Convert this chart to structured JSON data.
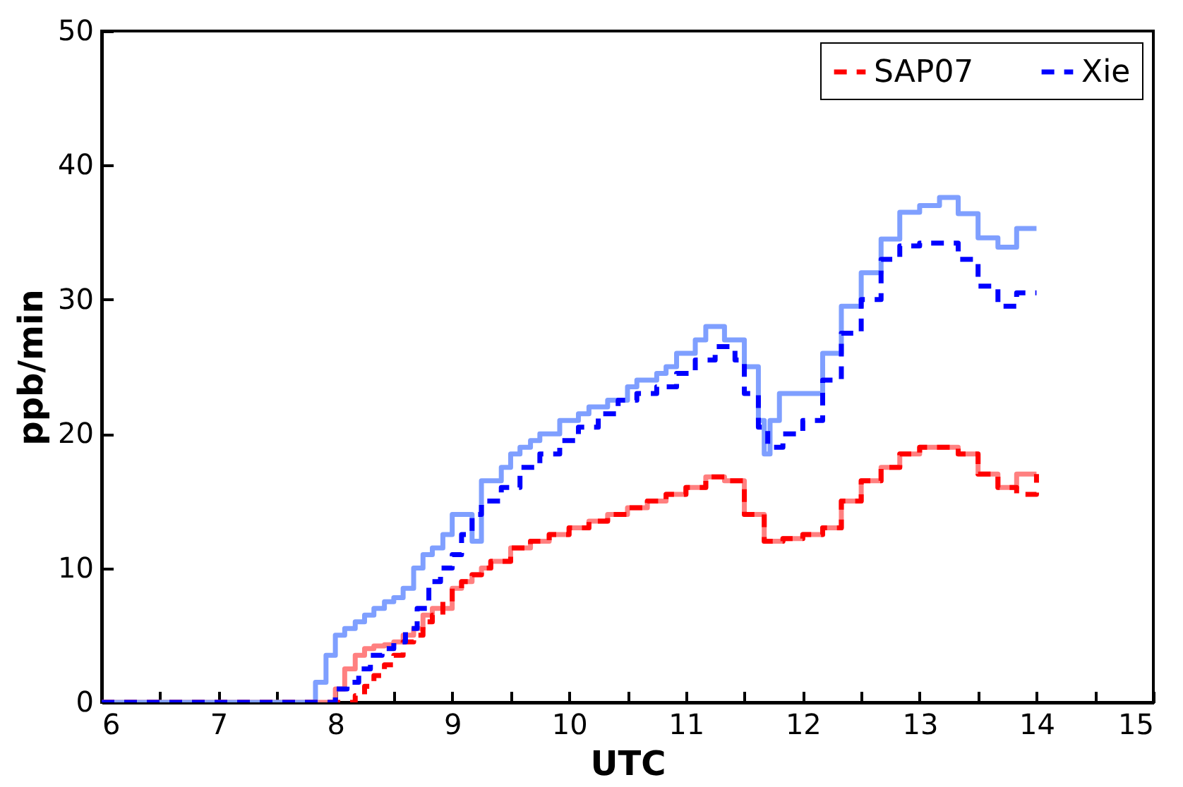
{
  "chart_data": {
    "type": "step",
    "xlabel": "UTC",
    "ylabel": "ppb/min",
    "xlim": [
      6,
      15
    ],
    "ylim": [
      0,
      50
    ],
    "xticks": [
      6,
      {
        "value": 6.5,
        "label": null
      },
      7,
      {
        "value": 7.5,
        "label": null
      },
      8,
      {
        "value": 8.5,
        "label": null
      },
      9,
      {
        "value": 9.5,
        "label": null
      },
      10,
      {
        "value": 10.5,
        "label": null
      },
      11,
      {
        "value": 11.5,
        "label": null
      },
      12,
      {
        "value": 12.5,
        "label": null
      },
      13,
      {
        "value": 13.5,
        "label": null
      },
      14,
      {
        "value": 14.5,
        "label": null
      },
      15
    ],
    "yticks": [
      0,
      10,
      20,
      30,
      40,
      50
    ],
    "legend": "top right",
    "grid": false,
    "series": [
      {
        "color": "#ff8080",
        "line_style": "solid",
        "x": [
          6,
          7.9,
          8.0,
          8.08,
          8.17,
          8.25,
          8.33,
          8.42,
          8.5,
          8.58,
          8.67,
          8.75,
          8.83,
          9.0,
          9.08,
          9.17,
          9.25,
          9.33,
          9.5,
          9.67,
          9.83,
          10.0,
          10.17,
          10.33,
          10.5,
          10.67,
          10.83,
          11.0,
          11.17,
          11.33,
          11.5,
          11.67,
          11.83,
          12.0,
          12.17,
          12.33,
          12.5,
          12.67,
          12.83,
          13.0,
          13.17,
          13.33,
          13.5,
          13.67,
          13.83,
          14.0
        ],
        "values": [
          0,
          0,
          1,
          2.5,
          3.5,
          4,
          4.2,
          4.3,
          4.5,
          5,
          5.5,
          6.5,
          7,
          8.5,
          9,
          9.5,
          10,
          10.5,
          11.5,
          12,
          12.5,
          13,
          13.5,
          14,
          14.5,
          15,
          15.5,
          16,
          16.8,
          16.5,
          14,
          12,
          12.2,
          12.5,
          13,
          15,
          16.5,
          17.5,
          18.5,
          19,
          19,
          18.5,
          17,
          16,
          17,
          17
        ]
      },
      {
        "color": "#7f9fff",
        "line_style": "solid",
        "x": [
          6,
          7.75,
          7.83,
          7.92,
          8.0,
          8.08,
          8.17,
          8.25,
          8.33,
          8.42,
          8.5,
          8.58,
          8.67,
          8.75,
          8.83,
          8.92,
          9.0,
          9.08,
          9.17,
          9.25,
          9.33,
          9.42,
          9.5,
          9.58,
          9.67,
          9.75,
          9.92,
          10.08,
          10.17,
          10.33,
          10.5,
          10.58,
          10.75,
          10.83,
          10.92,
          11.08,
          11.17,
          11.33,
          11.5,
          11.62,
          11.67,
          11.72,
          11.8,
          12.17,
          12.33,
          12.5,
          12.67,
          12.83,
          13.0,
          13.17,
          13.33,
          13.5,
          13.67,
          13.83,
          14.0
        ],
        "values": [
          0,
          0,
          1.5,
          3.5,
          5,
          5.5,
          6,
          6.5,
          7,
          7.5,
          7.8,
          8.5,
          10,
          11,
          11.5,
          12.5,
          14,
          14,
          12,
          16.5,
          16.5,
          17.5,
          18.5,
          19,
          19.5,
          20,
          21,
          21.5,
          22,
          22.5,
          23.5,
          24,
          24.5,
          25,
          26,
          27,
          28,
          27,
          25,
          21,
          18.5,
          21,
          23,
          26,
          29.5,
          32,
          34.5,
          36.5,
          37,
          37.6,
          36.4,
          34.6,
          33.9,
          35.3,
          35.3
        ]
      },
      {
        "name": "SAP07",
        "color": "#ff0000",
        "line_style": "dashed",
        "x": [
          6,
          8.1,
          8.17,
          8.25,
          8.33,
          8.42,
          8.5,
          8.58,
          8.67,
          8.75,
          8.83,
          8.92,
          9.0,
          9.08,
          9.17,
          9.25,
          9.33,
          9.5,
          9.67,
          9.83,
          10.0,
          10.17,
          10.33,
          10.5,
          10.67,
          10.83,
          11.0,
          11.17,
          11.33,
          11.5,
          11.67,
          11.83,
          12.0,
          12.17,
          12.33,
          12.5,
          12.67,
          12.83,
          13.0,
          13.17,
          13.33,
          13.5,
          13.67,
          13.83,
          14.0
        ],
        "values": [
          0,
          0,
          0.5,
          1.2,
          2,
          2.8,
          3.5,
          4.5,
          5,
          6,
          6.5,
          7.5,
          8.5,
          9,
          9.5,
          10,
          10.5,
          11.5,
          12,
          12.5,
          13,
          13.5,
          14,
          14.5,
          15,
          15.5,
          16,
          16.8,
          16.5,
          14,
          12,
          12.2,
          12.5,
          13,
          15,
          16.5,
          17.5,
          18.5,
          19,
          19,
          18.5,
          17,
          16,
          15.5,
          17
        ]
      },
      {
        "name": "Xie",
        "color": "#0000ff",
        "line_style": "dashed",
        "x": [
          6,
          7.9,
          8.0,
          8.1,
          8.2,
          8.3,
          8.4,
          8.5,
          8.6,
          8.7,
          8.8,
          8.9,
          9.0,
          9.08,
          9.17,
          9.25,
          9.42,
          9.58,
          9.75,
          9.92,
          10.08,
          10.25,
          10.42,
          10.58,
          10.75,
          10.92,
          11.08,
          11.25,
          11.42,
          11.5,
          11.62,
          11.7,
          11.83,
          12.0,
          12.17,
          12.33,
          12.5,
          12.67,
          12.83,
          13.0,
          13.17,
          13.33,
          13.5,
          13.67,
          13.83,
          14.0
        ],
        "values": [
          0,
          0,
          1,
          1.5,
          2.5,
          3.5,
          4,
          4.5,
          5.5,
          7,
          9,
          10,
          11,
          12.5,
          14,
          15,
          16,
          17.5,
          18.5,
          19.5,
          20.5,
          21.5,
          22.5,
          23,
          23.5,
          24.5,
          25.5,
          26.5,
          25.5,
          23,
          20.5,
          19,
          20,
          21,
          24,
          27.5,
          30,
          33,
          34,
          34.2,
          34.2,
          33,
          31,
          29.5,
          30.5,
          30.5
        ]
      }
    ]
  }
}
